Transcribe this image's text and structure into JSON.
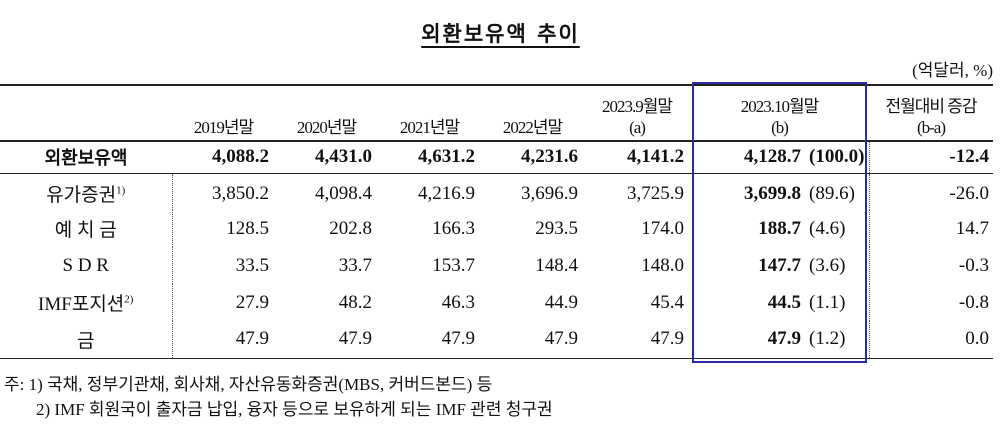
{
  "title": "외환보유액 추이",
  "unit": "(억달러, %)",
  "table": {
    "headers": [
      [
        "2019년말"
      ],
      [
        "2020년말"
      ],
      [
        "2021년말"
      ],
      [
        "2022년말"
      ],
      [
        "2023.9월말",
        "(a)"
      ],
      [
        "2023.10월말",
        "(b)"
      ],
      [
        "전월대비 증감",
        "(b-a)"
      ]
    ],
    "rows": [
      {
        "label": "외환보유액",
        "values": [
          "4,088.2",
          "4,431.0",
          "4,631.2",
          "4,231.6",
          "4,141.2"
        ],
        "current": "4,128.7",
        "share": "(100.0)",
        "change": "-12.4"
      },
      {
        "label": "유가증권",
        "sup": "1)",
        "values": [
          "3,850.2",
          "4,098.4",
          "4,216.9",
          "3,696.9",
          "3,725.9"
        ],
        "current": "3,699.8",
        "share": "(89.6)",
        "change": "-26.0"
      },
      {
        "label": "예 치 금",
        "values": [
          "128.5",
          "202.8",
          "166.3",
          "293.5",
          "174.0"
        ],
        "current": "188.7",
        "share": "(4.6)",
        "change": "14.7"
      },
      {
        "label": "S D R",
        "values": [
          "33.5",
          "33.7",
          "153.7",
          "148.4",
          "148.0"
        ],
        "current": "147.7",
        "share": "(3.6)",
        "change": "-0.3"
      },
      {
        "label": "IMF포지션",
        "sup": "2)",
        "values": [
          "27.9",
          "48.2",
          "46.3",
          "44.9",
          "45.4"
        ],
        "current": "44.5",
        "share": "(1.1)",
        "change": "-0.8"
      },
      {
        "label": "금",
        "values": [
          "47.9",
          "47.9",
          "47.9",
          "47.9",
          "47.9"
        ],
        "current": "47.9",
        "share": "(1.2)",
        "change": "0.0"
      }
    ]
  },
  "notes": [
    "주: 1) 국채, 정부기관채, 회사채, 자산유동화증권(MBS, 커버드본드) 등",
    "2) IMF 회원국이 출자금 납입, 융자 등으로 보유하게 되는 IMF 관련 청구권"
  ]
}
